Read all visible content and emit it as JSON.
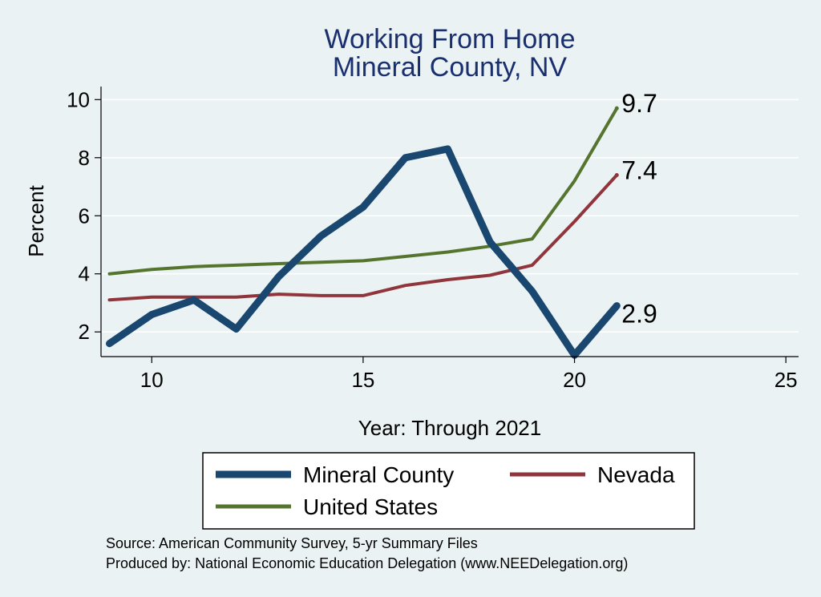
{
  "chart_data": {
    "type": "line",
    "title": "Working From Home",
    "subtitle": "Mineral County, NV",
    "xlabel": "Year: Through 2021",
    "ylabel": "Percent",
    "xlim": [
      8.8,
      25.3
    ],
    "ylim": [
      1.15,
      10.45
    ],
    "xticks": [
      "10",
      "15",
      "20",
      "25"
    ],
    "yticks": [
      "2",
      "4",
      "6",
      "8",
      "10"
    ],
    "grid": true,
    "legend_position": "bottom",
    "series": [
      {
        "name": "Mineral County",
        "color": "#1a476f",
        "x": [
          9,
          10,
          11,
          12,
          13,
          14,
          15,
          16,
          17,
          18,
          19,
          20,
          21
        ],
        "y": [
          1.6,
          2.6,
          3.1,
          2.1,
          3.9,
          5.3,
          6.3,
          8.0,
          8.3,
          5.1,
          3.4,
          1.2,
          2.9
        ],
        "end_label": "2.9"
      },
      {
        "name": "Nevada",
        "color": "#90353b",
        "x": [
          9,
          10,
          11,
          12,
          13,
          14,
          15,
          16,
          17,
          18,
          19,
          20,
          21
        ],
        "y": [
          3.1,
          3.2,
          3.2,
          3.2,
          3.3,
          3.25,
          3.25,
          3.6,
          3.8,
          3.95,
          4.3,
          5.8,
          7.4
        ],
        "end_label": "7.4"
      },
      {
        "name": "United States",
        "color": "#55752f",
        "x": [
          9,
          10,
          11,
          12,
          13,
          14,
          15,
          16,
          17,
          18,
          19,
          20,
          21
        ],
        "y": [
          4.0,
          4.15,
          4.25,
          4.3,
          4.35,
          4.4,
          4.45,
          4.6,
          4.75,
          4.95,
          5.2,
          7.2,
          9.7
        ],
        "end_label": "9.7"
      }
    ],
    "notes": [
      "Source: American Community Survey, 5-yr Summary Files",
      "Produced by: National Economic Education Delegation (www.NEEDelegation.org)"
    ]
  }
}
